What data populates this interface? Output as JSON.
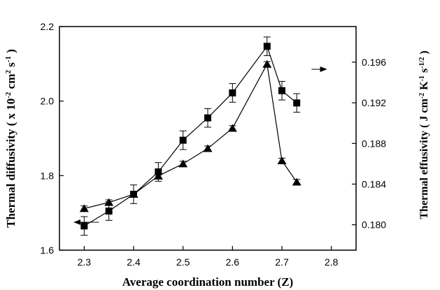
{
  "chart_data": {
    "type": "scatter",
    "x_axis": {
      "label": "Average coordination number (Z)",
      "range": [
        2.25,
        2.85
      ],
      "ticks": [
        2.3,
        2.4,
        2.5,
        2.6,
        2.7,
        2.8
      ],
      "tick_labels": [
        "2.3",
        "2.4",
        "2.5",
        "2.6",
        "2.7",
        "2.8"
      ]
    },
    "y_left": {
      "label_parts": {
        "a": "Thermal diffusivity ( x 10",
        "b": "-2",
        "c": " cm",
        "d": "2",
        "e": " s",
        "f": "-1",
        "g": " )"
      },
      "range": [
        1.6,
        2.2
      ],
      "ticks": [
        1.6,
        1.8,
        2.0,
        2.2
      ],
      "tick_labels": [
        "1.6",
        "1.8",
        "2.0",
        "2.2"
      ]
    },
    "y_right": {
      "label_parts": {
        "a": "Thermal effusivity ( J cm",
        "b": "-2",
        "c": " K",
        "d": "-1",
        "e": " s",
        "f": "-1/2",
        "g": " )"
      },
      "range": [
        0.1775,
        0.1995
      ],
      "ticks": [
        0.18,
        0.184,
        0.188,
        0.192,
        0.196
      ],
      "tick_labels": [
        "0.180",
        "0.184",
        "0.188",
        "0.192",
        "0.196"
      ]
    },
    "grid": false,
    "series": [
      {
        "marker": "square",
        "axis": "left",
        "x": [
          2.3,
          2.35,
          2.4,
          2.45,
          2.5,
          2.55,
          2.6,
          2.67,
          2.7,
          2.73
        ],
        "y": [
          1.665,
          1.705,
          1.75,
          1.81,
          1.895,
          1.955,
          2.022,
          2.147,
          2.028,
          1.995
        ],
        "error": [
          0.025,
          0.025,
          0.025,
          0.025,
          0.025,
          0.025,
          0.025,
          0.025,
          0.025,
          0.025
        ]
      },
      {
        "marker": "triangle",
        "axis": "right",
        "x": [
          2.3,
          2.35,
          2.4,
          2.45,
          2.5,
          2.55,
          2.6,
          2.67,
          2.7,
          2.73
        ],
        "y": [
          0.1816,
          0.1822,
          0.183,
          0.1848,
          0.186,
          0.1875,
          0.1895,
          0.1958,
          0.1863,
          0.1842
        ],
        "error": [
          0.00025,
          0.00025,
          0.00025,
          0.00025,
          0.00025,
          0.00025,
          0.00025,
          0.00025,
          0.00025,
          0.00025
        ]
      }
    ],
    "annotations": [
      {
        "type": "arrow",
        "direction": "left",
        "axis_hint": "left",
        "x": [
          2.28,
          2.33
        ],
        "y_left": 1.675
      },
      {
        "type": "arrow",
        "direction": "right",
        "axis_hint": "right",
        "x": [
          2.76,
          2.79
        ],
        "y_right": 0.1953
      }
    ]
  }
}
